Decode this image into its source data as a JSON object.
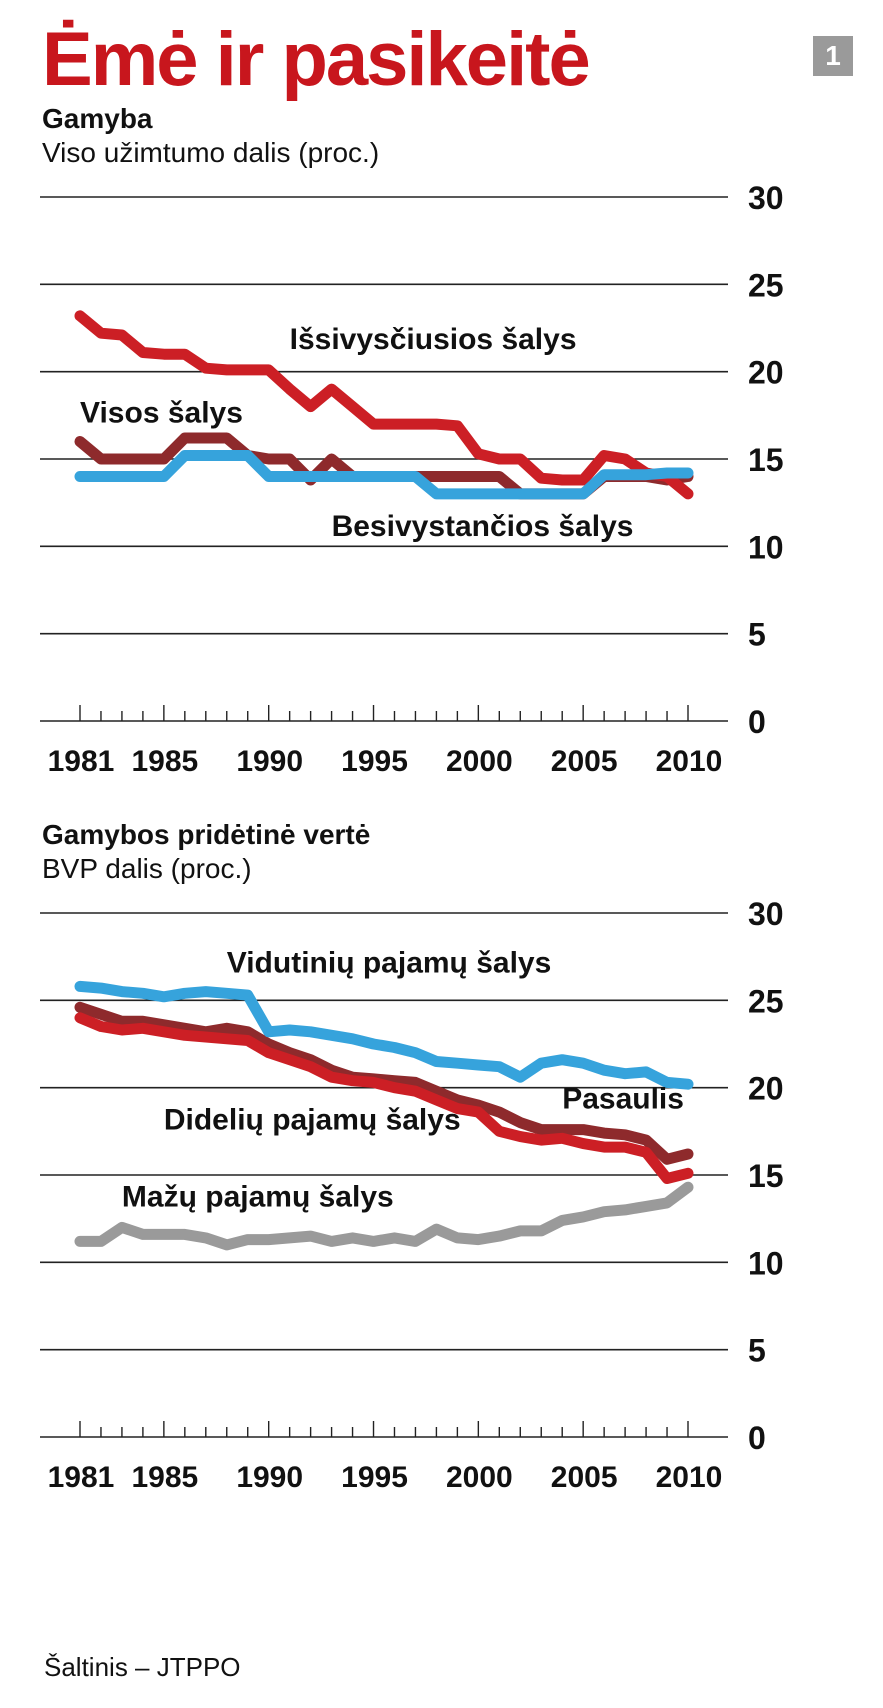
{
  "header": {
    "headline": "Ėmė ir pasikeitė",
    "page_number": "1"
  },
  "source": "Šaltinis – JTPPO",
  "colors": {
    "red": "#cc1f25",
    "darkred": "#8e2a2c",
    "blue": "#36a3dc",
    "gray": "#9a9a9a",
    "grid": "#222222"
  },
  "chart_data": [
    {
      "type": "line",
      "title": "Gamyba",
      "subtitle": "Viso užimtumo dalis (proc.)",
      "ylim": [
        0,
        30
      ],
      "yticks": [
        0,
        5,
        10,
        15,
        20,
        25,
        30
      ],
      "xticks": [
        1981,
        1985,
        1990,
        1995,
        2000,
        2005,
        2010
      ],
      "series": [
        {
          "name": "Visos šalys",
          "color": "darkred",
          "x": [
            1981,
            1982,
            1983,
            1984,
            1985,
            1986,
            1987,
            1988,
            1989,
            1990,
            1991,
            1992,
            1993,
            1994,
            1995,
            1996,
            1997,
            1998,
            1999,
            2000,
            2001,
            2002,
            2003,
            2004,
            2005,
            2006,
            2007,
            2008,
            2009,
            2010
          ],
          "values": [
            16,
            15,
            15,
            15,
            15,
            16.2,
            16.2,
            16.2,
            15.2,
            15,
            15,
            13.8,
            15,
            14,
            14,
            14,
            14,
            14,
            14,
            14,
            14,
            13,
            13,
            13,
            13,
            14,
            14,
            14,
            13.8,
            14
          ]
        },
        {
          "name": "Išsivysčiusios šalys",
          "color": "red",
          "x": [
            1981,
            1982,
            1983,
            1984,
            1985,
            1986,
            1987,
            1988,
            1989,
            1990,
            1991,
            1992,
            1993,
            1994,
            1995,
            1996,
            1997,
            1998,
            1999,
            2000,
            2001,
            2002,
            2003,
            2004,
            2005,
            2006,
            2007,
            2008,
            2009,
            2010
          ],
          "values": [
            23.2,
            22.2,
            22.1,
            21.1,
            21,
            21,
            20.2,
            20.1,
            20.1,
            20.1,
            19,
            18,
            19,
            18,
            17,
            17,
            17,
            17,
            16.9,
            15.3,
            15,
            15,
            13.9,
            13.8,
            13.8,
            15.2,
            15,
            14.2,
            14,
            13
          ]
        },
        {
          "name": "Besivystančios šalys",
          "color": "blue",
          "x": [
            1981,
            1982,
            1983,
            1984,
            1985,
            1986,
            1987,
            1988,
            1989,
            1990,
            1991,
            1992,
            1993,
            1994,
            1995,
            1996,
            1997,
            1998,
            1999,
            2000,
            2001,
            2002,
            2003,
            2004,
            2005,
            2006,
            2007,
            2008,
            2009,
            2010
          ],
          "values": [
            14,
            14,
            14,
            14,
            14,
            15.2,
            15.2,
            15.2,
            15.2,
            14,
            14,
            14,
            14,
            14,
            14,
            14,
            14,
            13,
            13,
            13,
            13,
            13,
            13,
            13,
            13,
            14.1,
            14.1,
            14.1,
            14.2,
            14.2
          ]
        }
      ],
      "annotations": [
        {
          "text": "Išsivysčiusios šalys",
          "x": 1991,
          "y": 21.3
        },
        {
          "text": "Visos šalys",
          "x": 1981,
          "y": 17.1
        },
        {
          "text": "Besivystančios šalys",
          "x": 1993,
          "y": 10.6
        }
      ]
    },
    {
      "type": "line",
      "title": "Gamybos pridėtinė vertė",
      "subtitle": "BVP dalis (proc.)",
      "ylim": [
        0,
        30
      ],
      "yticks": [
        0,
        5,
        10,
        15,
        20,
        25,
        30
      ],
      "xticks": [
        1981,
        1985,
        1990,
        1995,
        2000,
        2005,
        2010
      ],
      "series": [
        {
          "name": "Pasaulis",
          "color": "darkred",
          "x": [
            1981,
            1982,
            1983,
            1984,
            1985,
            1986,
            1987,
            1988,
            1989,
            1990,
            1991,
            1992,
            1993,
            1994,
            1995,
            1996,
            1997,
            1998,
            1999,
            2000,
            2001,
            2002,
            2003,
            2004,
            2005,
            2006,
            2007,
            2008,
            2009,
            2010
          ],
          "values": [
            24.6,
            24.2,
            23.8,
            23.8,
            23.6,
            23.4,
            23.2,
            23.4,
            23.2,
            22.5,
            22,
            21.6,
            21,
            20.6,
            20.5,
            20.4,
            20.3,
            19.8,
            19.3,
            19,
            18.6,
            18,
            17.6,
            17.6,
            17.6,
            17.4,
            17.3,
            17,
            15.9,
            16.2
          ]
        },
        {
          "name": "Vidutinių pajamų šalys",
          "color": "blue",
          "x": [
            1981,
            1982,
            1983,
            1984,
            1985,
            1986,
            1987,
            1988,
            1989,
            1990,
            1991,
            1992,
            1993,
            1994,
            1995,
            1996,
            1997,
            1998,
            1999,
            2000,
            2001,
            2002,
            2003,
            2004,
            2005,
            2006,
            2007,
            2008,
            2009,
            2010
          ],
          "values": [
            25.8,
            25.7,
            25.5,
            25.4,
            25.2,
            25.4,
            25.5,
            25.4,
            25.3,
            23.2,
            23.3,
            23.2,
            23,
            22.8,
            22.5,
            22.3,
            22,
            21.5,
            21.4,
            21.3,
            21.2,
            20.6,
            21.4,
            21.6,
            21.4,
            21,
            20.8,
            20.9,
            20.3,
            20.2
          ]
        },
        {
          "name": "Didelių pajamų šalys",
          "color": "red",
          "x": [
            1981,
            1982,
            1983,
            1984,
            1985,
            1986,
            1987,
            1988,
            1989,
            1990,
            1991,
            1992,
            1993,
            1994,
            1995,
            1996,
            1997,
            1998,
            1999,
            2000,
            2001,
            2002,
            2003,
            2004,
            2005,
            2006,
            2007,
            2008,
            2009,
            2010
          ],
          "values": [
            24,
            23.5,
            23.3,
            23.4,
            23.2,
            23,
            22.9,
            22.8,
            22.7,
            22,
            21.6,
            21.2,
            20.6,
            20.4,
            20.3,
            20,
            19.8,
            19.3,
            18.8,
            18.6,
            17.5,
            17.2,
            17,
            17.1,
            16.8,
            16.6,
            16.6,
            16.3,
            14.8,
            15.1
          ]
        },
        {
          "name": "Mažų pajamų šalys",
          "color": "gray",
          "x": [
            1981,
            1982,
            1983,
            1984,
            1985,
            1986,
            1987,
            1988,
            1989,
            1990,
            1991,
            1992,
            1993,
            1994,
            1995,
            1996,
            1997,
            1998,
            1999,
            2000,
            2001,
            2002,
            2003,
            2004,
            2005,
            2006,
            2007,
            2008,
            2009,
            2010
          ],
          "values": [
            11.2,
            11.2,
            12,
            11.6,
            11.6,
            11.6,
            11.4,
            11,
            11.3,
            11.3,
            11.4,
            11.5,
            11.2,
            11.4,
            11.2,
            11.4,
            11.2,
            11.9,
            11.4,
            11.3,
            11.5,
            11.8,
            11.8,
            12.4,
            12.6,
            12.9,
            13,
            13.2,
            13.4,
            14.3
          ]
        }
      ],
      "annotations": [
        {
          "text": "Vidutinių pajamų šalys",
          "x": 1988,
          "y": 26.6
        },
        {
          "text": "Pasaulis",
          "x": 2004,
          "y": 18.8
        },
        {
          "text": "Didelių pajamų šalys",
          "x": 1985,
          "y": 17.6
        },
        {
          "text": "Mažų pajamų šalys",
          "x": 1983,
          "y": 13.2
        }
      ]
    }
  ]
}
